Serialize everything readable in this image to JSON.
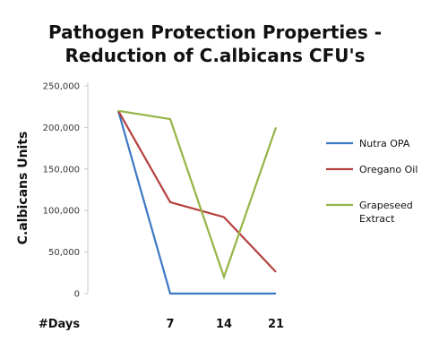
{
  "chart_data": {
    "type": "line",
    "title_lines": [
      "Pathogen Protection  Properties -",
      "Reduction of C.albicans CFU's"
    ],
    "ylabel": "C.albicans Units",
    "x_axis_label": "#Days",
    "x": [
      0,
      7,
      14,
      21
    ],
    "x_tick_labels": [
      "7",
      "14",
      "21"
    ],
    "ylim": [
      0,
      250000
    ],
    "y_ticks": [
      0,
      50000,
      100000,
      150000,
      200000,
      250000
    ],
    "y_tick_labels": [
      "0",
      "50,000",
      "100,000",
      "150,000",
      "200,000",
      "250,000"
    ],
    "grid": false,
    "legend_position": "right",
    "series": [
      {
        "name": "Nutra OPA",
        "legend_lines": [
          "Nutra OPA"
        ],
        "color": "#3b78c3",
        "values": [
          220000,
          0,
          0,
          0
        ]
      },
      {
        "name": "Oregano Oil",
        "legend_lines": [
          "Oregano Oil"
        ],
        "color": "#b5403d",
        "values": [
          220000,
          110000,
          92000,
          26000
        ]
      },
      {
        "name": "Grapeseed Extract",
        "legend_lines": [
          "Grapeseed",
          "Extract"
        ],
        "color": "#94b545",
        "values": [
          220000,
          210000,
          20000,
          200000
        ]
      }
    ]
  }
}
